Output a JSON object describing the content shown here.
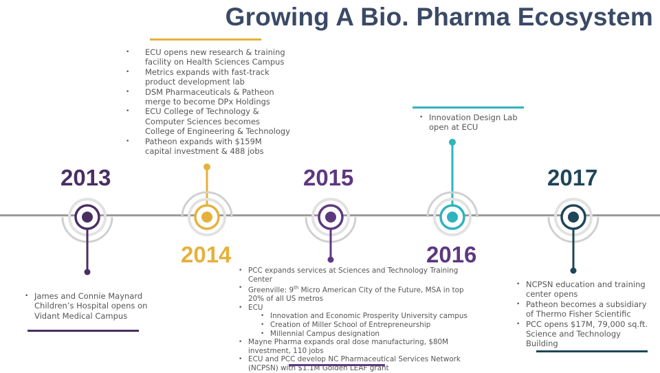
{
  "title": "Growing A Bio. Pharma Ecosystem",
  "colors": {
    "purple": "#4a2e63",
    "gold": "#e5b13b",
    "violet": "#5d3880",
    "teal": "#2fb3bd",
    "navy": "#1f4558",
    "line": "#9a9a9a",
    "text": "#555555"
  },
  "years": {
    "y2013": "2013",
    "y2014": "2014",
    "y2015": "2015",
    "y2016": "2016",
    "y2017": "2017"
  },
  "notes": {
    "n2013": [
      "James and Connie Maynard Children’s Hospital opens on Vidant Medical Campus"
    ],
    "n2014": [
      "ECU opens new research & training facility on Health Sciences Campus",
      "Metrics expands with fast-track product development lab",
      "DSM Pharmaceuticals & Patheon merge to become DPx Holdings",
      "ECU College of Technology & Computer Sciences becomes College of Engineering & Technology",
      "Patheon expands with $159M capital investment & 488 jobs"
    ],
    "n2015": {
      "pcc": "PCC expands services at Sciences and Technology Training Center",
      "greenville_pre": "Greenville: 9",
      "greenville_sup": "th",
      "greenville_post": " Micro American City of the Future, MSA in top 20% of all US metros",
      "ecu": "ECU",
      "ecu_sub": [
        "Innovation and Economic Prosperity University campus",
        "Creation of Miller School of Entrepreneurship",
        "Millennial Campus designation"
      ],
      "mayne": "Mayne Pharma expands oral dose manufacturing, $80M investment, 110 jobs",
      "ncpsn": "ECU and PCC develop NC Pharmaceutical Services Network (NCPSN) with $1.1M Golden LEAF grant"
    },
    "n2016": [
      "Innovation Design Lab open at ECU"
    ],
    "n2017": [
      "NCPSN education and training center opens",
      "Patheon becomes a subsidiary of Thermo Fisher Scientific",
      "PCC opens $17M, 79,000 sq.ft. Science and Technology Building"
    ]
  }
}
